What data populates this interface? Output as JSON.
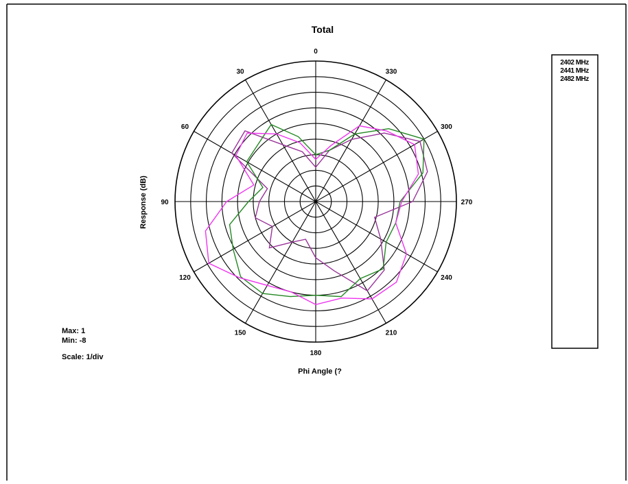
{
  "chart_data": {
    "type": "polar",
    "title": "Total",
    "xlabel": "Phi Angle (?",
    "ylabel": "Response (dB)",
    "angle_direction": "clockwise-labels-counterclockwise",
    "angle_ticks": [
      "0",
      "30",
      "60",
      "90",
      "120",
      "150",
      "180",
      "210",
      "240",
      "270",
      "300",
      "330"
    ],
    "rlim": [
      -8,
      1
    ],
    "r_divisions": 9,
    "grid": true,
    "legend_position": "right",
    "stats": {
      "max_label": "Max: 1",
      "min_label": "Min: -8",
      "scale_label": "Scale: 1/div"
    },
    "series": [
      {
        "name": "2402 MHz",
        "color": "#993399",
        "angles": [
          0,
          15,
          30,
          45,
          60,
          75,
          90,
          105,
          120,
          135,
          150,
          165,
          180,
          195,
          210,
          225,
          240,
          255,
          270,
          285,
          300,
          315,
          330,
          345
        ],
        "values": [
          -5.8,
          -4.7,
          -3.8,
          -1.6,
          -1.8,
          -4.8,
          -4.4,
          -4.0,
          -4.8,
          -3.8,
          -5.0,
          -5.5,
          -4.4,
          -3.4,
          -1.4,
          -1.8,
          -3.2,
          -4.1,
          -1.8,
          -0.6,
          -0.3,
          -1.8,
          -3.4,
          -4.6
        ]
      },
      {
        "name": "2441 MHz",
        "color": "#228822",
        "angles": [
          0,
          15,
          30,
          45,
          60,
          75,
          90,
          105,
          120,
          135,
          150,
          165,
          180,
          195,
          210,
          225,
          240,
          255,
          270,
          285,
          300,
          315,
          330,
          345
        ],
        "values": [
          -5.0,
          -3.7,
          -2.3,
          -2.8,
          -2.9,
          -4.5,
          -3.7,
          -2.3,
          -1.9,
          -1.2,
          -1.2,
          -1.7,
          -2.0,
          -1.7,
          -2.3,
          -1.9,
          -2.8,
          -2.7,
          -2.6,
          -0.9,
          0.0,
          -1.4,
          -3.0,
          -4.6
        ]
      },
      {
        "name": "2482 MHz",
        "color": "#ee33ee",
        "angles": [
          0,
          15,
          30,
          45,
          60,
          75,
          90,
          105,
          120,
          135,
          150,
          165,
          180,
          195,
          210,
          225,
          240,
          255,
          270,
          285,
          300,
          315,
          330,
          345
        ],
        "values": [
          -5.3,
          -4.1,
          -3.0,
          -1.8,
          -2.1,
          -3.9,
          -2.3,
          -0.7,
          -0.1,
          -1.1,
          -1.8,
          -2.0,
          -1.4,
          -1.6,
          -0.8,
          -0.7,
          -1.3,
          -2.7,
          -2.5,
          -1.2,
          -0.7,
          -1.6,
          -2.4,
          -4.3
        ]
      }
    ]
  }
}
